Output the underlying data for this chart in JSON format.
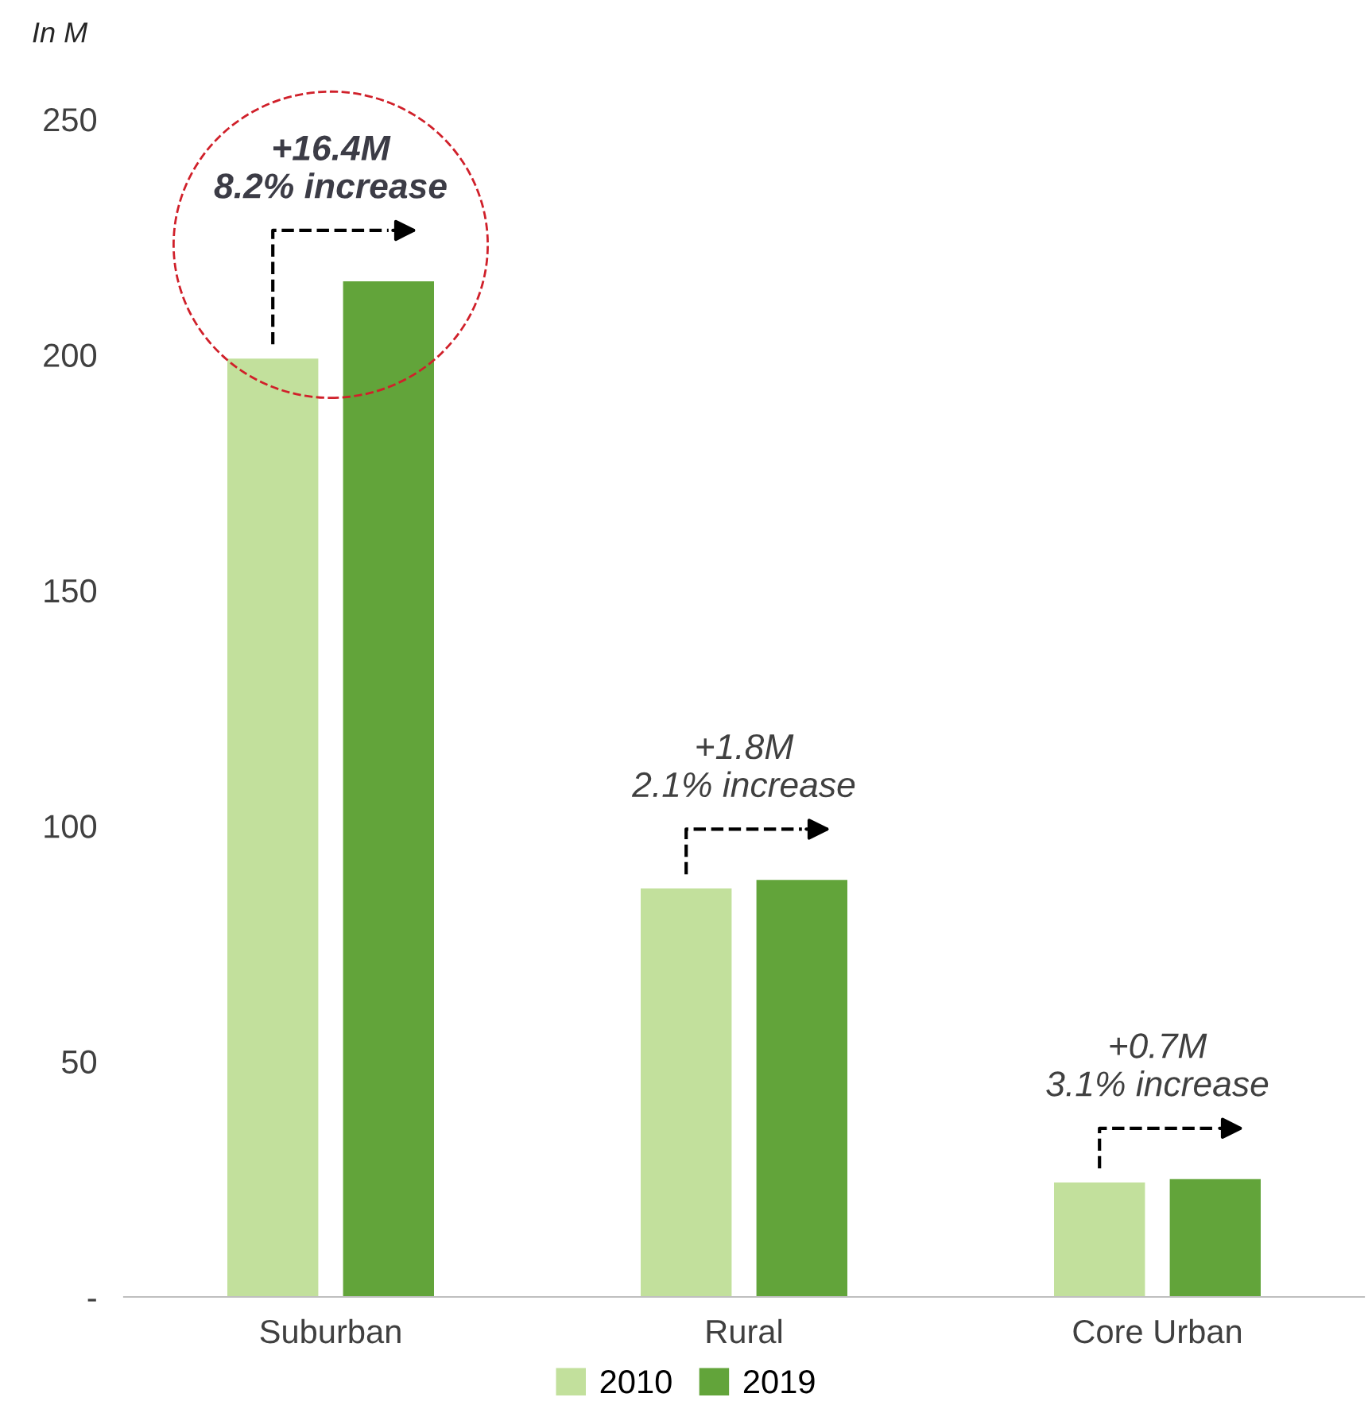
{
  "chart_data": {
    "type": "bar",
    "ylabel": "In M",
    "categories": [
      "Suburban",
      "Rural",
      "Core Urban"
    ],
    "series": [
      {
        "name": "2010",
        "color": "#c2e09c",
        "values": [
          199.2,
          86.7,
          24.3
        ]
      },
      {
        "name": "2019",
        "color": "#62a43a",
        "values": [
          215.6,
          88.5,
          25.0
        ]
      }
    ],
    "ylim": [
      0,
      250
    ],
    "yticks": [
      {
        "value": 0,
        "label": "-"
      },
      50,
      100,
      150,
      200,
      250
    ],
    "annotations": [
      "+16.4M\n8.2% increase",
      "+1.8M\n2.1% increase",
      "+0.7M\n3.1% increase"
    ],
    "grid": false,
    "legend": "bottom"
  }
}
